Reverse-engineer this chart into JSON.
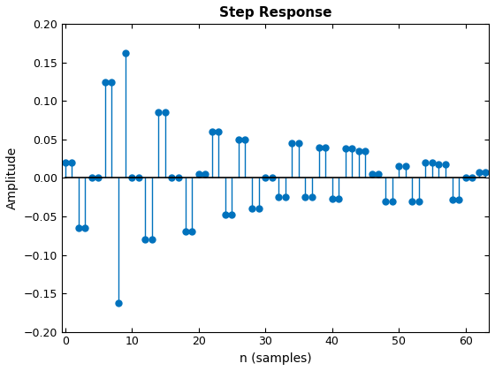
{
  "title": "Step Response",
  "xlabel": "n (samples)",
  "ylabel": "Amplitude",
  "stem_color": "#0072BD",
  "marker_color": "#0072BD",
  "baseline_color": "black",
  "xlim": [
    -0.5,
    63.5
  ],
  "ylim": [
    -0.2,
    0.2
  ],
  "xticks": [
    0,
    10,
    20,
    30,
    40,
    50,
    60
  ],
  "yticks": [
    -0.2,
    -0.15,
    -0.1,
    -0.05,
    0.0,
    0.05,
    0.1,
    0.15,
    0.2
  ],
  "n": [
    0,
    1,
    2,
    3,
    4,
    5,
    6,
    7,
    8,
    9,
    10,
    11,
    12,
    13,
    14,
    15,
    16,
    17,
    18,
    19,
    20,
    21,
    22,
    23,
    24,
    25,
    26,
    27,
    28,
    29,
    30,
    31,
    32,
    33,
    34,
    35,
    36,
    37,
    38,
    39,
    40,
    41,
    42,
    43,
    44,
    45,
    46,
    47,
    48,
    49,
    50,
    51,
    52,
    53,
    54,
    55,
    56,
    57,
    58,
    59,
    60,
    61,
    62,
    63
  ],
  "values": [
    0.02,
    0.02,
    -0.065,
    -0.065,
    0.0,
    0.0,
    0.125,
    0.125,
    -0.162,
    0.162,
    0.0,
    0.0,
    -0.08,
    -0.08,
    0.085,
    0.085,
    0.0,
    0.0,
    -0.07,
    -0.07,
    0.005,
    0.005,
    0.06,
    0.06,
    -0.048,
    -0.048,
    0.05,
    0.05,
    -0.04,
    -0.04,
    0.0,
    0.0,
    -0.025,
    -0.025,
    0.045,
    0.045,
    -0.025,
    -0.025,
    0.04,
    0.04,
    -0.027,
    -0.027,
    0.038,
    0.038,
    0.035,
    0.035,
    0.005,
    0.005,
    -0.03,
    -0.03,
    0.015,
    0.015,
    -0.03,
    -0.03,
    0.02,
    0.02,
    0.018,
    0.018,
    -0.028,
    -0.028,
    0.0,
    0.0,
    0.007,
    0.007
  ]
}
